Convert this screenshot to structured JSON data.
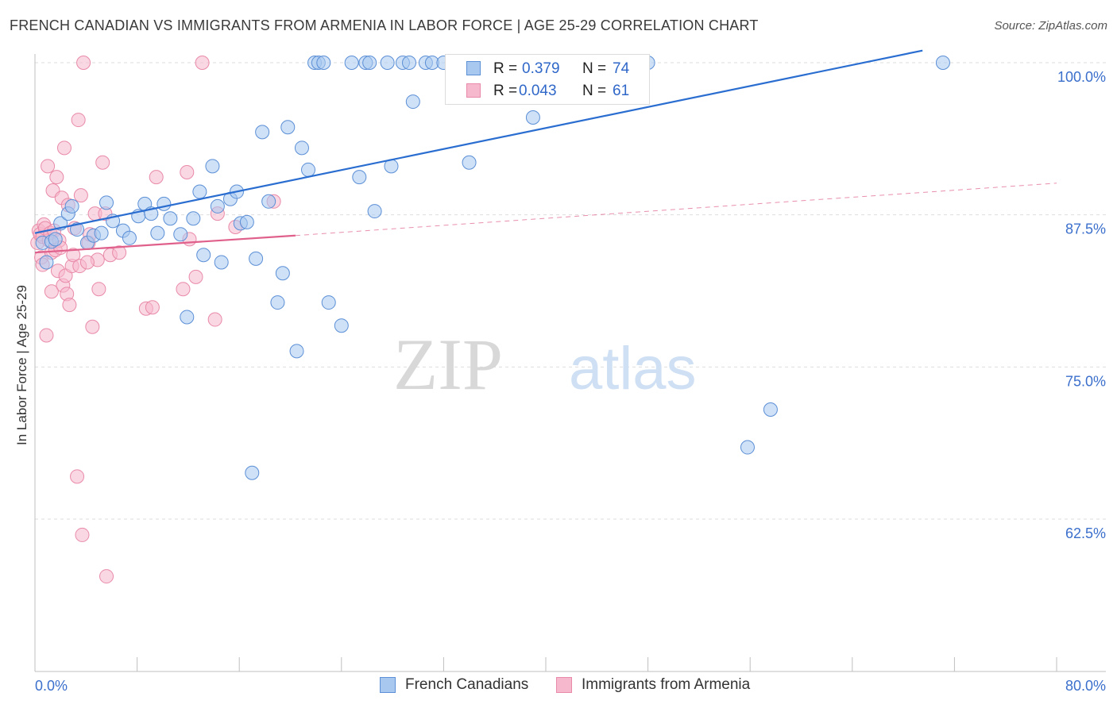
{
  "header": {
    "title": "FRENCH CANADIAN VS IMMIGRANTS FROM ARMENIA IN LABOR FORCE | AGE 25-29 CORRELATION CHART",
    "source": "Source: ZipAtlas.com"
  },
  "watermark": {
    "zip": "ZIP",
    "atlas": "atlas"
  },
  "legend": {
    "series1": {
      "r_label": "R =",
      "r_value": "0.379",
      "n_label": "N =",
      "n_value": "74"
    },
    "series2": {
      "r_label": "R =",
      "r_value": "0.043",
      "n_label": "N =",
      "n_value": "61"
    }
  },
  "bottom_legend": {
    "series1": "French Canadians",
    "series2": "Immigrants from Armenia"
  },
  "colors": {
    "blue_fill": "#a8c8f0",
    "blue_stroke": "#5b8fd6",
    "blue_line": "#2a6dd0",
    "pink_fill": "#f6b8cc",
    "pink_stroke": "#e98aa8",
    "pink_line": "#e0608c",
    "tick_label": "#3b6fcc",
    "grid": "#dddddd"
  },
  "chart_data": {
    "type": "scatter",
    "title": "FRENCH CANADIAN VS IMMIGRANTS FROM ARMENIA IN LABOR FORCE | AGE 25-29 CORRELATION CHART",
    "xlabel": "",
    "ylabel": "In Labor Force | Age 25-29",
    "xlim": [
      0,
      80
    ],
    "ylim": [
      51.5,
      101
    ],
    "x_tick_labels": [
      "0.0%",
      "80.0%"
    ],
    "y_ticks": [
      62.5,
      75.0,
      87.5,
      100.0
    ],
    "y_tick_labels": [
      "62.5%",
      "75.0%",
      "87.5%",
      "100.0%"
    ],
    "grid": true,
    "legend_position": "top-center",
    "series": [
      {
        "name": "French Canadians",
        "color": "#a8c8f0",
        "trend": {
          "x": [
            0,
            69.5
          ],
          "y": [
            86.0,
            101.0
          ]
        },
        "points": [
          [
            0.6,
            85.2
          ],
          [
            0.9,
            83.6
          ],
          [
            1.3,
            85.3
          ],
          [
            1.6,
            85.5
          ],
          [
            2.0,
            86.8
          ],
          [
            2.6,
            87.6
          ],
          [
            2.9,
            88.2
          ],
          [
            3.3,
            86.3
          ],
          [
            4.1,
            85.2
          ],
          [
            4.6,
            85.8
          ],
          [
            5.2,
            86.0
          ],
          [
            5.6,
            88.5
          ],
          [
            6.1,
            87.0
          ],
          [
            6.9,
            86.2
          ],
          [
            7.4,
            85.6
          ],
          [
            8.1,
            87.4
          ],
          [
            8.6,
            88.4
          ],
          [
            9.1,
            87.6
          ],
          [
            9.6,
            86.0
          ],
          [
            10.1,
            88.4
          ],
          [
            10.6,
            87.2
          ],
          [
            11.4,
            85.9
          ],
          [
            11.9,
            79.1
          ],
          [
            12.4,
            87.2
          ],
          [
            12.9,
            89.4
          ],
          [
            13.2,
            84.2
          ],
          [
            13.9,
            91.5
          ],
          [
            14.3,
            88.2
          ],
          [
            14.6,
            83.6
          ],
          [
            15.3,
            88.8
          ],
          [
            15.8,
            89.4
          ],
          [
            16.1,
            86.8
          ],
          [
            16.6,
            86.9
          ],
          [
            17.0,
            66.3
          ],
          [
            17.3,
            83.9
          ],
          [
            17.8,
            94.3
          ],
          [
            18.3,
            88.6
          ],
          [
            19.0,
            80.3
          ],
          [
            19.4,
            82.7
          ],
          [
            19.8,
            94.7
          ],
          [
            20.5,
            76.3
          ],
          [
            20.9,
            93.0
          ],
          [
            21.4,
            91.2
          ],
          [
            21.9,
            100.0
          ],
          [
            22.2,
            100.0
          ],
          [
            22.6,
            100.0
          ],
          [
            23.0,
            80.3
          ],
          [
            24.0,
            78.4
          ],
          [
            24.8,
            100.0
          ],
          [
            25.4,
            90.6
          ],
          [
            25.9,
            100.0
          ],
          [
            26.2,
            100.0
          ],
          [
            26.6,
            87.8
          ],
          [
            27.6,
            100.0
          ],
          [
            27.9,
            91.5
          ],
          [
            28.8,
            100.0
          ],
          [
            29.3,
            100.0
          ],
          [
            29.6,
            96.8
          ],
          [
            30.6,
            100.0
          ],
          [
            31.1,
            100.0
          ],
          [
            32.0,
            100.0
          ],
          [
            33.0,
            100.0
          ],
          [
            34.0,
            91.8
          ],
          [
            36.0,
            100.0
          ],
          [
            37.0,
            100.0
          ],
          [
            38.0,
            100.0
          ],
          [
            39.0,
            95.5
          ],
          [
            40.0,
            100.0
          ],
          [
            43.0,
            100.0
          ],
          [
            45.0,
            100.0
          ],
          [
            48.0,
            100.0
          ],
          [
            55.8,
            68.4
          ],
          [
            57.6,
            71.5
          ],
          [
            71.1,
            100.0
          ]
        ]
      },
      {
        "name": "Immigrants from Armenia",
        "color": "#f6b8cc",
        "trend": {
          "x": [
            0,
            20.4
          ],
          "y": [
            84.4,
            85.8
          ]
        },
        "trend_extended": {
          "x": [
            20.4,
            80
          ],
          "y": [
            85.8,
            90.1
          ]
        },
        "points": [
          [
            0.2,
            85.2
          ],
          [
            0.3,
            86.2
          ],
          [
            0.4,
            85.9
          ],
          [
            0.5,
            84.0
          ],
          [
            0.6,
            83.4
          ],
          [
            0.6,
            85.7
          ],
          [
            0.7,
            86.7
          ],
          [
            0.8,
            86.4
          ],
          [
            0.9,
            77.6
          ],
          [
            1.0,
            91.5
          ],
          [
            1.1,
            85.4
          ],
          [
            1.2,
            86.0
          ],
          [
            1.3,
            84.4
          ],
          [
            1.3,
            81.2
          ],
          [
            1.4,
            89.5
          ],
          [
            1.5,
            86.2
          ],
          [
            1.6,
            84.6
          ],
          [
            1.7,
            90.6
          ],
          [
            1.8,
            82.9
          ],
          [
            1.9,
            85.4
          ],
          [
            2.0,
            84.8
          ],
          [
            2.1,
            88.9
          ],
          [
            2.2,
            81.7
          ],
          [
            2.3,
            93.0
          ],
          [
            2.4,
            82.5
          ],
          [
            2.5,
            81.0
          ],
          [
            2.6,
            88.3
          ],
          [
            2.7,
            80.1
          ],
          [
            2.9,
            83.3
          ],
          [
            3.0,
            84.2
          ],
          [
            3.1,
            86.4
          ],
          [
            3.3,
            66.0
          ],
          [
            3.4,
            95.3
          ],
          [
            3.5,
            83.3
          ],
          [
            3.6,
            89.1
          ],
          [
            3.7,
            61.2
          ],
          [
            3.8,
            100.0
          ],
          [
            4.2,
            85.2
          ],
          [
            4.3,
            85.9
          ],
          [
            4.5,
            78.3
          ],
          [
            4.7,
            87.6
          ],
          [
            4.9,
            83.8
          ],
          [
            5.0,
            81.4
          ],
          [
            5.3,
            91.8
          ],
          [
            5.5,
            87.6
          ],
          [
            5.6,
            57.8
          ],
          [
            5.9,
            84.2
          ],
          [
            6.6,
            84.4
          ],
          [
            8.7,
            79.8
          ],
          [
            9.2,
            79.9
          ],
          [
            9.5,
            90.6
          ],
          [
            11.6,
            81.4
          ],
          [
            11.9,
            91.0
          ],
          [
            12.1,
            85.5
          ],
          [
            12.6,
            82.4
          ],
          [
            13.1,
            100.0
          ],
          [
            14.1,
            78.9
          ],
          [
            14.3,
            87.6
          ],
          [
            15.7,
            86.5
          ],
          [
            18.7,
            88.6
          ],
          [
            4.1,
            83.6
          ]
        ]
      }
    ]
  }
}
